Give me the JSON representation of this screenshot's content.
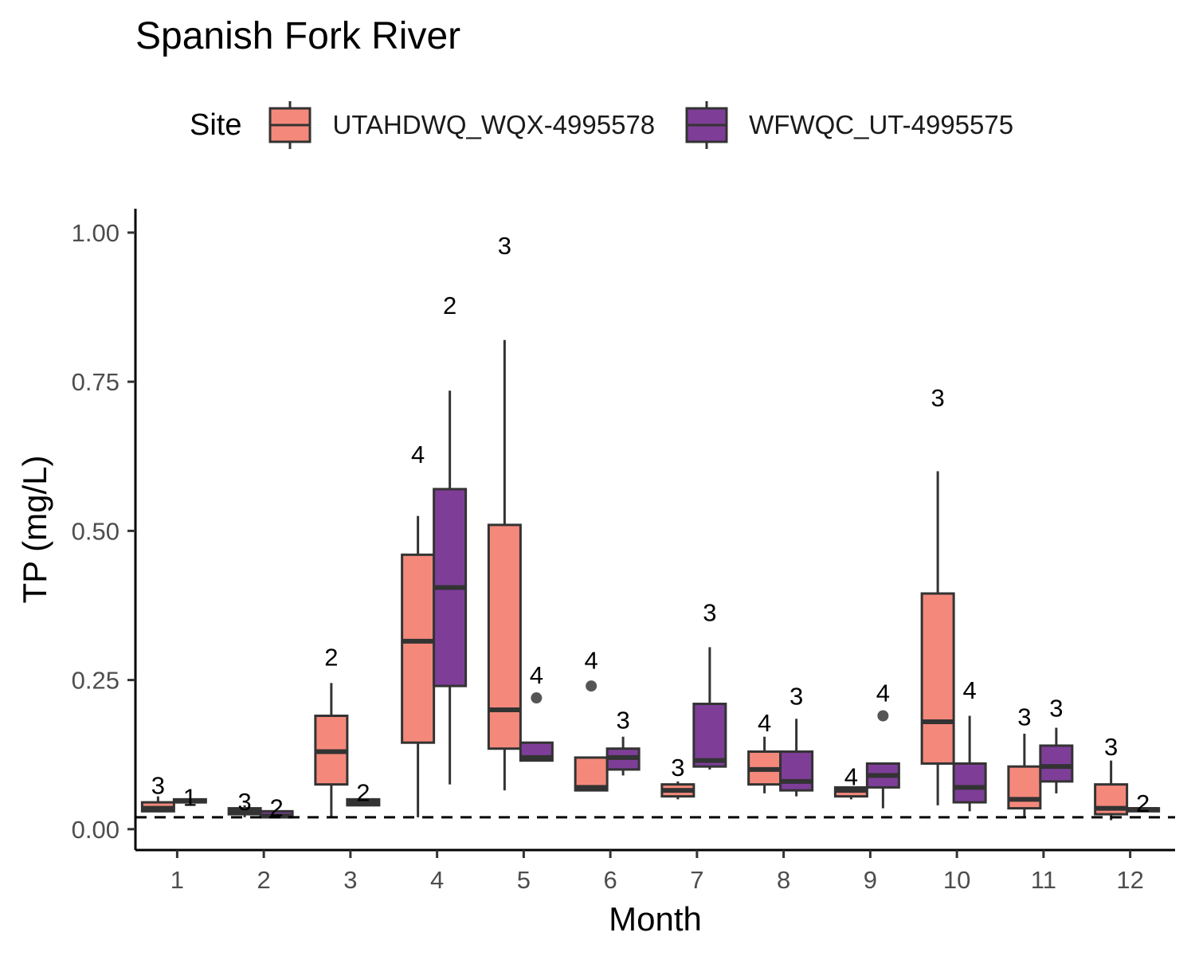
{
  "chart_data": {
    "type": "box",
    "title": "Spanish Fork River",
    "xlabel": "Month",
    "ylabel": "TP (mg/L)",
    "legend_title": "Site",
    "legend_position": "top",
    "ylim": [
      -0.035,
      1.04
    ],
    "yticks": [
      "0.00",
      "0.25",
      "0.50",
      "0.75",
      "1.00"
    ],
    "categories": [
      "1",
      "2",
      "3",
      "4",
      "5",
      "6",
      "7",
      "8",
      "9",
      "10",
      "11",
      "12"
    ],
    "reference_line": {
      "y": 0.02,
      "style": "dashed"
    },
    "grid": false,
    "series": [
      {
        "name": "UTAHDWQ_WQX-4995578",
        "color": "#F4897B",
        "boxes": [
          {
            "month": "1",
            "min": 0.03,
            "q1": 0.03,
            "median": 0.035,
            "q3": 0.045,
            "max": 0.055,
            "outliers": [],
            "n": "3"
          },
          {
            "month": "2",
            "min": 0.02,
            "q1": 0.025,
            "median": 0.03,
            "q3": 0.035,
            "max": 0.04,
            "outliers": [],
            "n": "3"
          },
          {
            "month": "3",
            "min": 0.02,
            "q1": 0.075,
            "median": 0.13,
            "q3": 0.19,
            "max": 0.245,
            "outliers": [],
            "n": "2"
          },
          {
            "month": "4",
            "min": 0.02,
            "q1": 0.145,
            "median": 0.315,
            "q3": 0.46,
            "max": 0.525,
            "outliers": [],
            "n": "4"
          },
          {
            "month": "5",
            "min": 0.065,
            "q1": 0.135,
            "median": 0.2,
            "q3": 0.51,
            "max": 0.82,
            "outliers": [],
            "n": "3"
          },
          {
            "month": "6",
            "min": 0.065,
            "q1": 0.065,
            "median": 0.07,
            "q3": 0.12,
            "max": 0.12,
            "outliers": [
              0.24
            ],
            "n": "4"
          },
          {
            "month": "7",
            "min": 0.05,
            "q1": 0.055,
            "median": 0.065,
            "q3": 0.075,
            "max": 0.08,
            "outliers": [],
            "n": "3"
          },
          {
            "month": "8",
            "min": 0.06,
            "q1": 0.075,
            "median": 0.1,
            "q3": 0.13,
            "max": 0.155,
            "outliers": [],
            "n": "4"
          },
          {
            "month": "9",
            "min": 0.05,
            "q1": 0.055,
            "median": 0.065,
            "q3": 0.07,
            "max": 0.07,
            "outliers": [],
            "n": "4"
          },
          {
            "month": "10",
            "min": 0.04,
            "q1": 0.11,
            "median": 0.18,
            "q3": 0.395,
            "max": 0.6,
            "outliers": [],
            "n": "3"
          },
          {
            "month": "11",
            "min": 0.02,
            "q1": 0.035,
            "median": 0.05,
            "q3": 0.105,
            "max": 0.16,
            "outliers": [],
            "n": "3"
          },
          {
            "month": "12",
            "min": 0.015,
            "q1": 0.025,
            "median": 0.035,
            "q3": 0.075,
            "max": 0.115,
            "outliers": [],
            "n": "3"
          }
        ]
      },
      {
        "name": "WFWQC_UT-4995575",
        "color": "#7E3E98",
        "boxes": [
          {
            "month": "1",
            "min": 0.045,
            "q1": 0.045,
            "median": 0.047,
            "q3": 0.05,
            "max": 0.05,
            "outliers": [],
            "n": "1"
          },
          {
            "month": "2",
            "min": 0.02,
            "q1": 0.02,
            "median": 0.022,
            "q3": 0.03,
            "max": 0.03,
            "outliers": [],
            "n": "2"
          },
          {
            "month": "3",
            "min": 0.04,
            "q1": 0.04,
            "median": 0.045,
            "q3": 0.05,
            "max": 0.05,
            "outliers": [],
            "n": "2"
          },
          {
            "month": "4",
            "min": 0.075,
            "q1": 0.24,
            "median": 0.405,
            "q3": 0.57,
            "max": 0.735,
            "outliers": [],
            "n": "2"
          },
          {
            "month": "5",
            "min": 0.115,
            "q1": 0.115,
            "median": 0.12,
            "q3": 0.145,
            "max": 0.145,
            "outliers": [
              0.22
            ],
            "n": "4"
          },
          {
            "month": "6",
            "min": 0.09,
            "q1": 0.1,
            "median": 0.12,
            "q3": 0.135,
            "max": 0.155,
            "outliers": [],
            "n": "3"
          },
          {
            "month": "7",
            "min": 0.1,
            "q1": 0.105,
            "median": 0.115,
            "q3": 0.21,
            "max": 0.305,
            "outliers": [],
            "n": "3"
          },
          {
            "month": "8",
            "min": 0.055,
            "q1": 0.065,
            "median": 0.08,
            "q3": 0.13,
            "max": 0.185,
            "outliers": [],
            "n": "3"
          },
          {
            "month": "9",
            "min": 0.035,
            "q1": 0.07,
            "median": 0.09,
            "q3": 0.11,
            "max": 0.11,
            "outliers": [
              0.19
            ],
            "n": "4"
          },
          {
            "month": "10",
            "min": 0.03,
            "q1": 0.045,
            "median": 0.07,
            "q3": 0.11,
            "max": 0.19,
            "outliers": [],
            "n": "4"
          },
          {
            "month": "11",
            "min": 0.06,
            "q1": 0.08,
            "median": 0.105,
            "q3": 0.14,
            "max": 0.17,
            "outliers": [],
            "n": "3"
          },
          {
            "month": "12",
            "min": 0.03,
            "q1": 0.03,
            "median": 0.033,
            "q3": 0.035,
            "max": 0.035,
            "outliers": [],
            "n": "2"
          }
        ]
      }
    ]
  },
  "count_labels_y": {
    "UTAHDWQ_WQX-4995578": [
      0.075,
      0.048,
      0.29,
      0.63,
      0.98,
      0.285,
      0.105,
      0.18,
      0.09,
      0.725,
      0.19,
      0.14
    ],
    "WFWQC_UT-4995575": [
      0.055,
      0.038,
      0.063,
      0.88,
      0.26,
      0.185,
      0.365,
      0.225,
      0.23,
      0.235,
      0.205,
      0.045
    ]
  }
}
